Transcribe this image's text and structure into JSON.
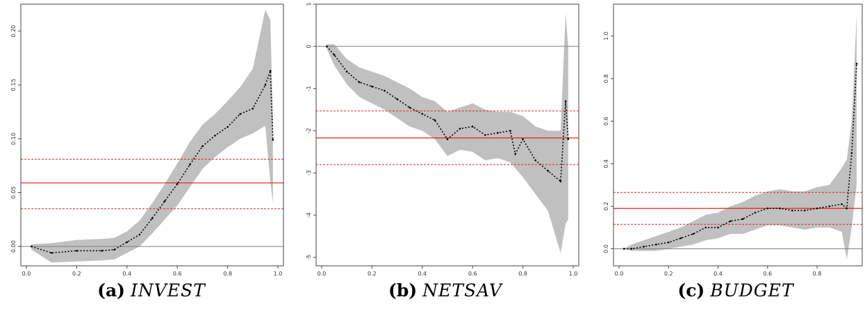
{
  "chart_data": [
    {
      "type": "line",
      "caption_label": "(a)",
      "caption_var": "INVEST",
      "xlim": [
        0.0,
        1.0
      ],
      "ylim": [
        -0.018,
        0.225
      ],
      "xticks": [
        "0.0",
        "0.2",
        "0.4",
        "0.6",
        "0.8",
        "1.0"
      ],
      "yticks": [
        "0.00",
        "0.05",
        "0.10",
        "0.15",
        "0.20"
      ],
      "zero_line": 0,
      "hlines": {
        "solid": 0.059,
        "dashed": [
          0.035,
          0.081
        ]
      },
      "estimate": {
        "x": [
          0.02,
          0.1,
          0.2,
          0.3,
          0.35,
          0.4,
          0.45,
          0.5,
          0.55,
          0.6,
          0.65,
          0.7,
          0.75,
          0.8,
          0.85,
          0.9,
          0.95,
          0.97,
          0.98
        ],
        "y": [
          0.0,
          -0.006,
          -0.004,
          -0.004,
          -0.003,
          0.004,
          0.011,
          0.026,
          0.042,
          0.058,
          0.076,
          0.093,
          0.103,
          0.111,
          0.123,
          0.128,
          0.15,
          0.163,
          0.099
        ]
      },
      "band": {
        "x": [
          0.02,
          0.1,
          0.2,
          0.3,
          0.35,
          0.4,
          0.45,
          0.5,
          0.55,
          0.6,
          0.65,
          0.7,
          0.75,
          0.8,
          0.85,
          0.9,
          0.95,
          0.97,
          0.98
        ],
        "lower": [
          -0.003,
          -0.015,
          -0.014,
          -0.013,
          -0.012,
          -0.006,
          0.0,
          0.012,
          0.025,
          0.038,
          0.055,
          0.072,
          0.083,
          0.092,
          0.1,
          0.105,
          0.112,
          0.06,
          0.04
        ],
        "upper": [
          0.002,
          0.003,
          0.006,
          0.007,
          0.008,
          0.014,
          0.024,
          0.04,
          0.058,
          0.077,
          0.097,
          0.113,
          0.123,
          0.135,
          0.148,
          0.165,
          0.22,
          0.21,
          0.12
        ]
      }
    },
    {
      "type": "line",
      "caption_label": "(b)",
      "caption_var": "NETSAV",
      "xlim": [
        0.0,
        1.0
      ],
      "ylim": [
        -5.2,
        1.0
      ],
      "xticks": [
        "0.0",
        "0.2",
        "0.4",
        "0.6",
        "0.8",
        "1.0"
      ],
      "yticks": [
        "-5",
        "-4",
        "-3",
        "-2",
        "-1",
        "0",
        "1"
      ],
      "zero_line": 0,
      "hlines": {
        "solid": -2.17,
        "dashed": [
          -2.8,
          -1.53
        ]
      },
      "estimate": {
        "x": [
          0.02,
          0.05,
          0.1,
          0.15,
          0.2,
          0.25,
          0.3,
          0.35,
          0.4,
          0.45,
          0.5,
          0.55,
          0.6,
          0.65,
          0.7,
          0.75,
          0.77,
          0.8,
          0.85,
          0.9,
          0.95,
          0.97,
          0.98
        ],
        "y": [
          0.0,
          -0.2,
          -0.6,
          -0.85,
          -0.95,
          -1.05,
          -1.25,
          -1.45,
          -1.6,
          -1.75,
          -2.2,
          -1.95,
          -1.9,
          -2.1,
          -2.05,
          -2.0,
          -2.55,
          -2.2,
          -2.7,
          -2.95,
          -3.2,
          -1.3,
          -2.2
        ]
      },
      "band": {
        "x": [
          0.02,
          0.05,
          0.1,
          0.15,
          0.2,
          0.25,
          0.3,
          0.35,
          0.4,
          0.45,
          0.5,
          0.55,
          0.6,
          0.65,
          0.7,
          0.75,
          0.8,
          0.85,
          0.9,
          0.95,
          0.97,
          0.98
        ],
        "lower": [
          -0.05,
          -0.45,
          -0.9,
          -1.2,
          -1.35,
          -1.5,
          -1.7,
          -1.9,
          -2.0,
          -2.2,
          -2.6,
          -2.45,
          -2.5,
          -2.7,
          -2.65,
          -2.75,
          -3.1,
          -3.5,
          -3.9,
          -4.9,
          -4.2,
          -4.1
        ],
        "upper": [
          0.05,
          0.05,
          -0.3,
          -0.5,
          -0.6,
          -0.7,
          -0.85,
          -1.0,
          -1.2,
          -1.3,
          -1.55,
          -1.45,
          -1.35,
          -1.5,
          -1.55,
          -1.55,
          -1.65,
          -1.9,
          -2.0,
          -2.0,
          0.8,
          0.0
        ]
      }
    },
    {
      "type": "line",
      "caption_label": "(c)",
      "caption_var": "BUDGET",
      "xlim": [
        0.0,
        0.96
      ],
      "ylim": [
        -0.08,
        1.15
      ],
      "xticks": [
        "0.0",
        "0.2",
        "0.4",
        "0.6",
        "0.8"
      ],
      "yticks": [
        "0.0",
        "0.2",
        "0.4",
        "0.6",
        "0.8",
        "1.0"
      ],
      "zero_line": 0,
      "hlines": {
        "solid": 0.19,
        "dashed": [
          0.115,
          0.265
        ]
      },
      "estimate": {
        "x": [
          0.02,
          0.05,
          0.1,
          0.15,
          0.2,
          0.25,
          0.3,
          0.35,
          0.4,
          0.45,
          0.5,
          0.55,
          0.6,
          0.65,
          0.7,
          0.75,
          0.8,
          0.85,
          0.9,
          0.92,
          0.94,
          0.96
        ],
        "y": [
          0.0,
          0.0,
          0.01,
          0.02,
          0.03,
          0.05,
          0.07,
          0.1,
          0.1,
          0.13,
          0.14,
          0.17,
          0.19,
          0.19,
          0.18,
          0.18,
          0.19,
          0.2,
          0.21,
          0.19,
          0.45,
          0.87
        ]
      },
      "band": {
        "x": [
          0.02,
          0.05,
          0.1,
          0.15,
          0.2,
          0.25,
          0.3,
          0.35,
          0.4,
          0.45,
          0.5,
          0.55,
          0.6,
          0.65,
          0.7,
          0.75,
          0.8,
          0.85,
          0.9,
          0.92,
          0.94,
          0.96
        ],
        "lower": [
          0.0,
          -0.01,
          -0.01,
          -0.01,
          0.0,
          0.01,
          0.02,
          0.04,
          0.05,
          0.07,
          0.07,
          0.09,
          0.11,
          0.11,
          0.1,
          0.09,
          0.1,
          0.1,
          0.08,
          -0.05,
          0.1,
          0.3
        ],
        "upper": [
          0.0,
          0.02,
          0.04,
          0.06,
          0.08,
          0.1,
          0.13,
          0.16,
          0.17,
          0.2,
          0.22,
          0.25,
          0.27,
          0.28,
          0.27,
          0.27,
          0.29,
          0.3,
          0.38,
          0.42,
          0.6,
          1.1
        ]
      }
    }
  ],
  "colors": {
    "band": "#c0c0c0",
    "estimate": "#000000",
    "zero_line": "#7f7f7f",
    "hline": "#e8201a",
    "axis": "#444444"
  }
}
